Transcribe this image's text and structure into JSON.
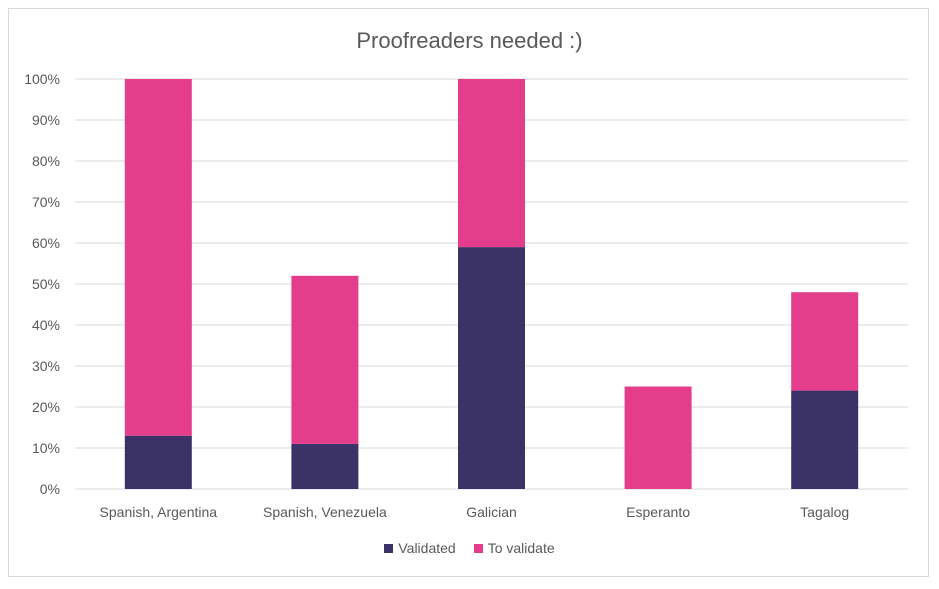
{
  "chart_data": {
    "type": "bar",
    "stacked": true,
    "title": "Proofreaders needed :)",
    "categories": [
      "Spanish, Argentina",
      "Spanish, Venezuela",
      "Galician",
      "Esperanto",
      "Tagalog"
    ],
    "series": [
      {
        "name": "Validated",
        "color": "#3b3268",
        "values": [
          13,
          11,
          59,
          0,
          24
        ]
      },
      {
        "name": "To validate",
        "color": "#e33d8c",
        "values": [
          87,
          41,
          41,
          25,
          24
        ]
      }
    ],
    "ylim": [
      0,
      100
    ],
    "yticks": [
      "0%",
      "10%",
      "20%",
      "30%",
      "40%",
      "50%",
      "60%",
      "70%",
      "80%",
      "90%",
      "100%"
    ],
    "grid": true,
    "legend_position": "bottom"
  }
}
